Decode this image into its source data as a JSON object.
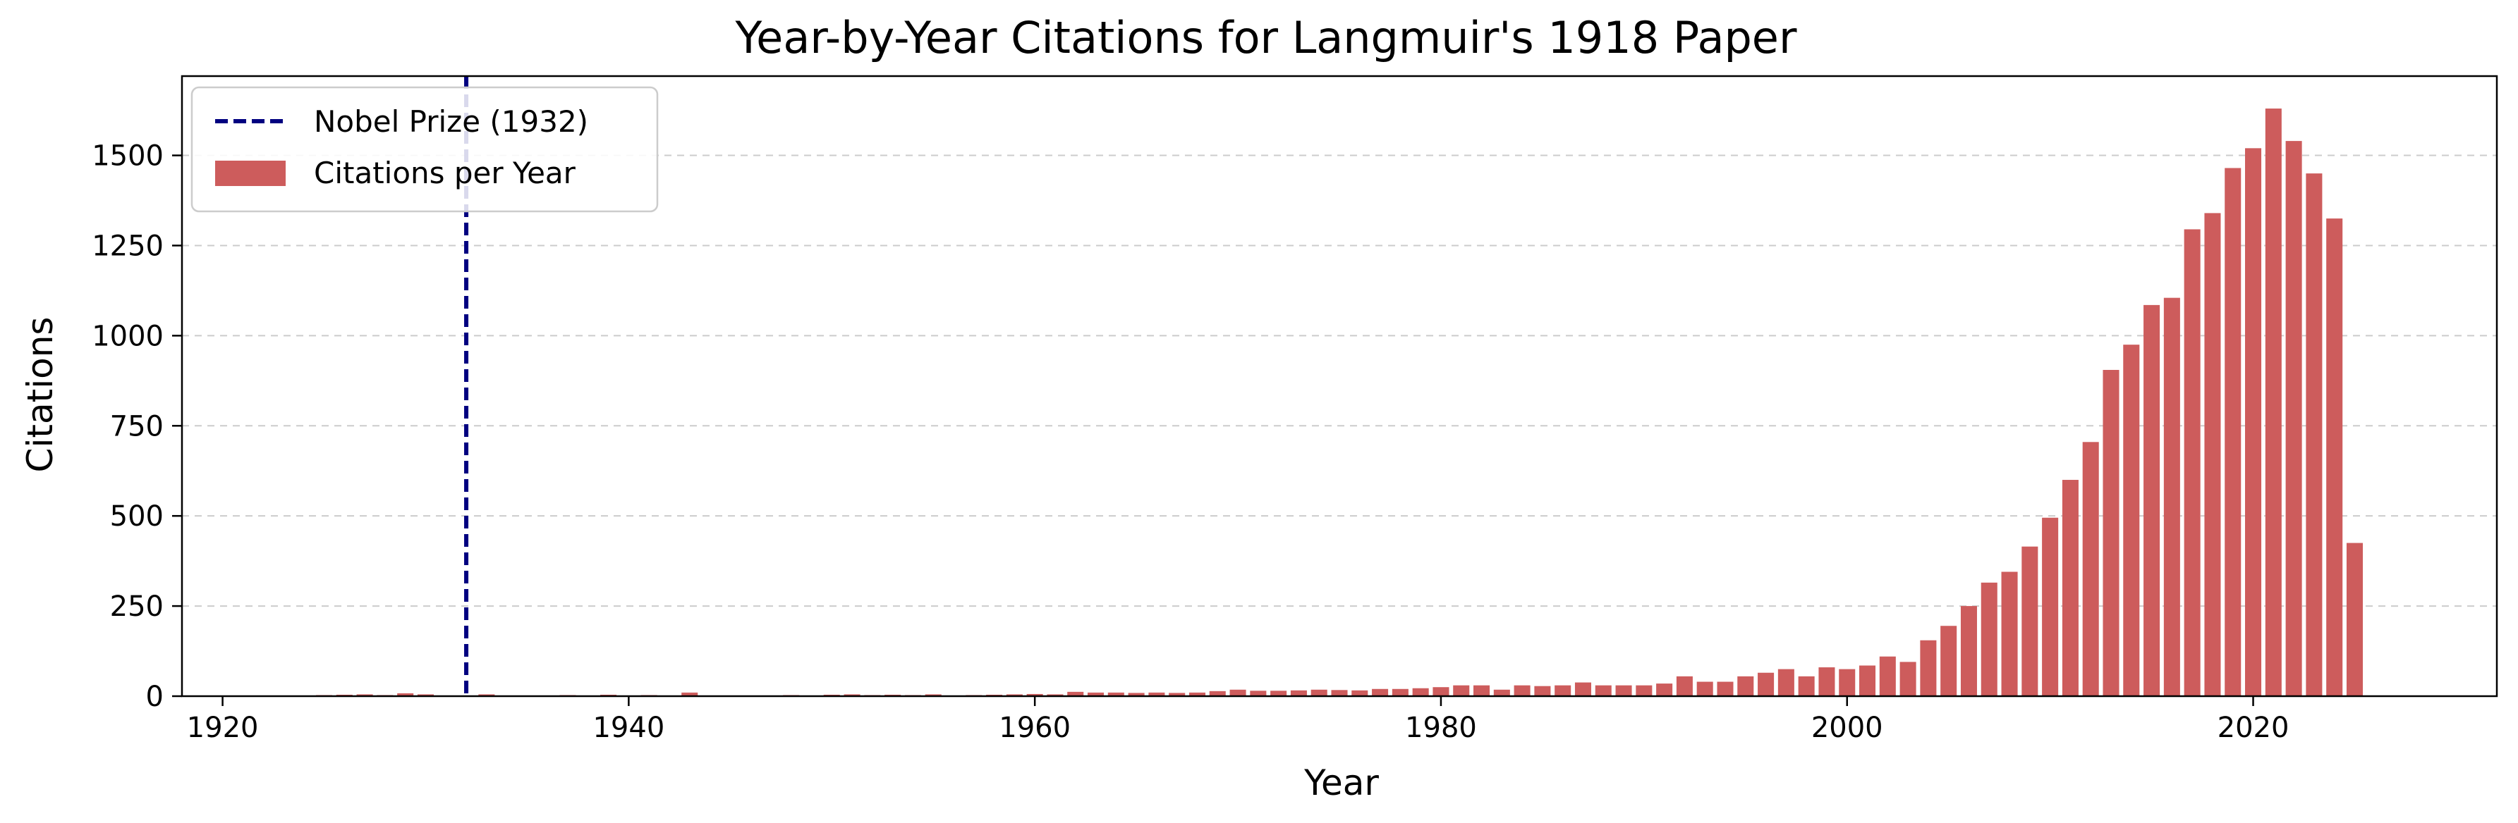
{
  "chart_data": {
    "type": "bar",
    "title": "Year-by-Year Citations for Langmuir's 1918 Paper",
    "xlabel": "Year",
    "ylabel": "Citations",
    "xlim": [
      1918,
      2032
    ],
    "ylim": [
      0,
      1720
    ],
    "xticks": [
      1920,
      1940,
      1960,
      1980,
      2000,
      2020
    ],
    "yticks": [
      0,
      250,
      500,
      750,
      1000,
      1250,
      1500
    ],
    "grid": "y-dashed",
    "legend_position": "upper-left",
    "colors": {
      "bars": "#cd5c5c",
      "nobel_line": "#000080"
    },
    "vline": {
      "name": "Nobel Prize (1932)",
      "x": 1932,
      "style": "dashed"
    },
    "series": [
      {
        "name": "Citations per Year",
        "x": [
          1925,
          1926,
          1927,
          1928,
          1929,
          1930,
          1931,
          1933,
          1936,
          1937,
          1939,
          1941,
          1943,
          1947,
          1948,
          1949,
          1950,
          1951,
          1952,
          1953,
          1954,
          1955,
          1956,
          1957,
          1958,
          1959,
          1960,
          1961,
          1962,
          1963,
          1964,
          1965,
          1966,
          1967,
          1968,
          1969,
          1970,
          1971,
          1972,
          1973,
          1974,
          1975,
          1976,
          1977,
          1978,
          1979,
          1980,
          1981,
          1982,
          1983,
          1984,
          1985,
          1986,
          1987,
          1988,
          1989,
          1990,
          1991,
          1992,
          1993,
          1994,
          1995,
          1996,
          1997,
          1998,
          1999,
          2000,
          2001,
          2002,
          2003,
          2004,
          2005,
          2006,
          2007,
          2008,
          2009,
          2010,
          2011,
          2012,
          2013,
          2014,
          2015,
          2016,
          2017,
          2018,
          2019,
          2020,
          2021,
          2022,
          2023,
          2024,
          2025
        ],
        "values": [
          3,
          4,
          5,
          3,
          8,
          5,
          2,
          5,
          2,
          3,
          4,
          3,
          10,
          2,
          3,
          2,
          4,
          5,
          3,
          4,
          3,
          5,
          2,
          3,
          4,
          5,
          6,
          5,
          12,
          10,
          10,
          9,
          10,
          9,
          10,
          14,
          18,
          15,
          15,
          16,
          18,
          17,
          16,
          20,
          20,
          22,
          25,
          30,
          30,
          18,
          30,
          28,
          30,
          38,
          30,
          30,
          30,
          35,
          55,
          40,
          40,
          55,
          65,
          75,
          55,
          80,
          75,
          85,
          110,
          95,
          155,
          195,
          250,
          315,
          345,
          415,
          495,
          600,
          705,
          905,
          975,
          1085,
          1105,
          1295,
          1340,
          1465,
          1520,
          1630,
          1540,
          1450,
          1325,
          425
        ]
      }
    ]
  }
}
